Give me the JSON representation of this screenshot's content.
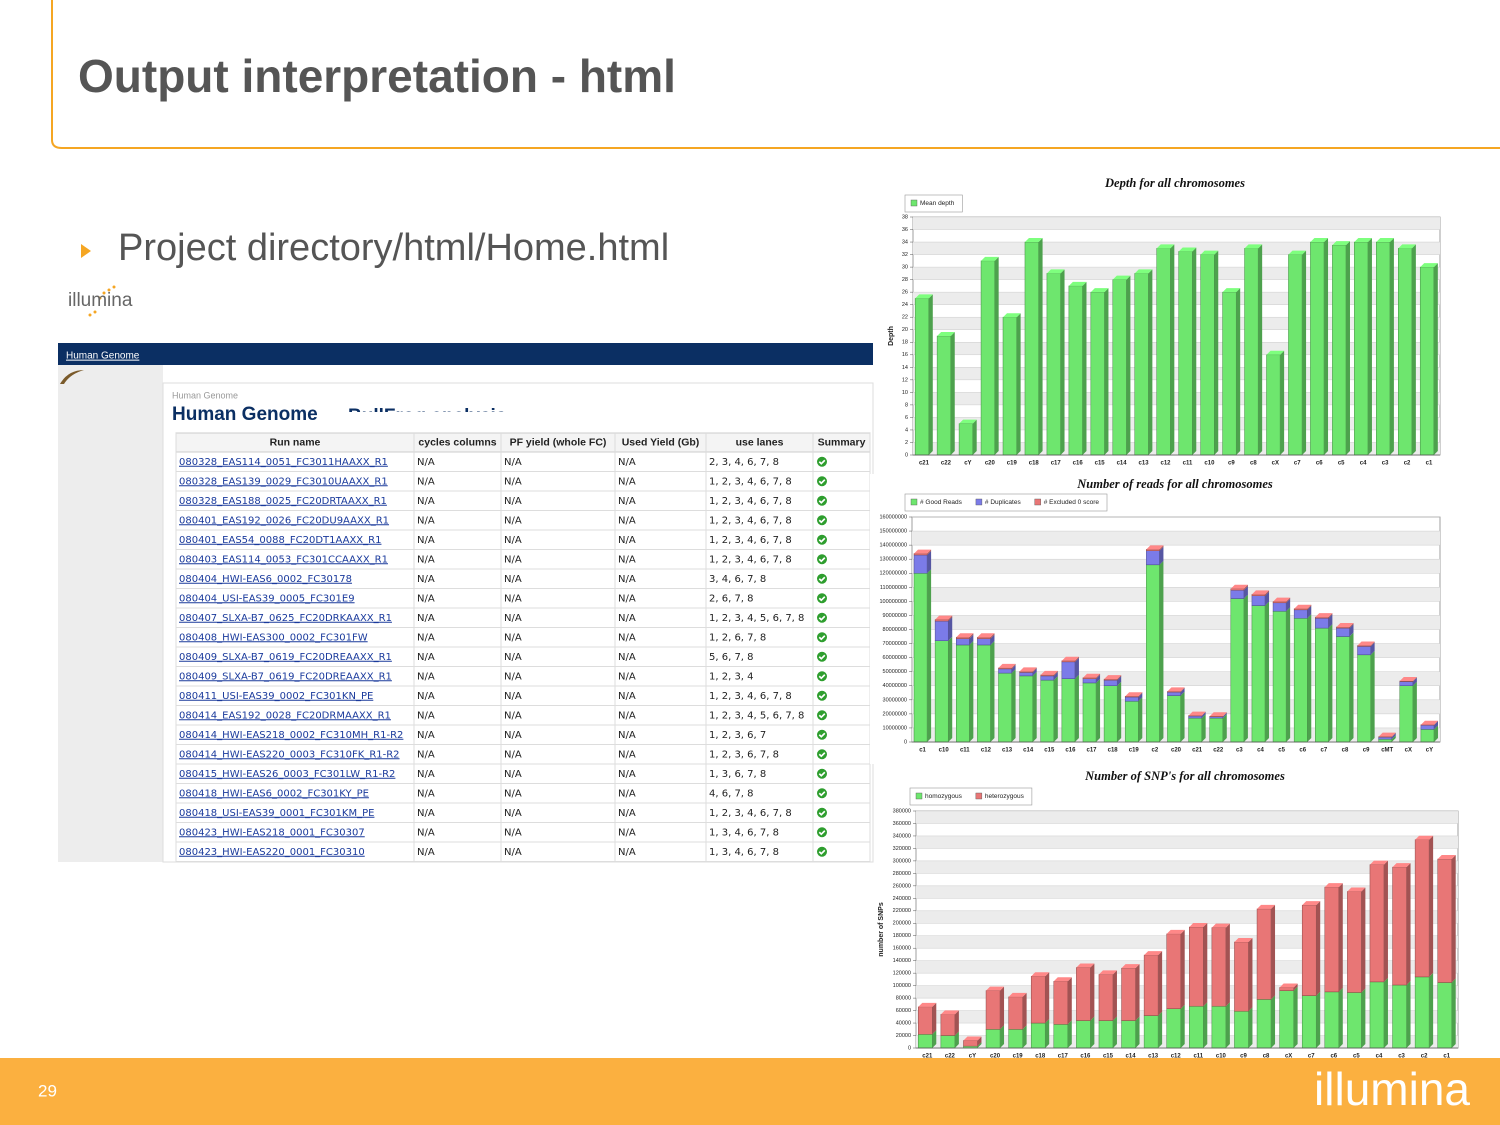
{
  "slide": {
    "title": "Output interpretation - html",
    "bullet": "Project directory/html/Home.html",
    "logo": "illumina",
    "page_number": "29"
  },
  "browser": {
    "nav_link": "Human Genome",
    "breadcrumb": "Human Genome",
    "heading": "Human Genome",
    "subheading": "BullFrog analysis"
  },
  "table": {
    "header": [
      "Run name",
      "cycles columns",
      "PF yield (whole FC)",
      "Used Yield (Gb)",
      "use lanes",
      "Summary"
    ],
    "rows": [
      [
        "080328_EAS114_0051_FC3011HAAXX_R1",
        "N/A",
        "N/A",
        "N/A",
        "2, 3, 4, 6, 7, 8"
      ],
      [
        "080328_EAS139_0029_FC3010UAAXX_R1",
        "N/A",
        "N/A",
        "N/A",
        "1, 2, 3, 4, 6, 7, 8"
      ],
      [
        "080328_EAS188_0025_FC20DRTAAXX_R1",
        "N/A",
        "N/A",
        "N/A",
        "1, 2, 3, 4, 6, 7, 8"
      ],
      [
        "080401_EAS192_0026_FC20DU9AAXX_R1",
        "N/A",
        "N/A",
        "N/A",
        "1, 2, 3, 4, 6, 7, 8"
      ],
      [
        "080401_EAS54_0088_FC20DT1AAXX_R1",
        "N/A",
        "N/A",
        "N/A",
        "1, 2, 3, 4, 6, 7, 8"
      ],
      [
        "080403_EAS114_0053_FC301CCAAXX_R1",
        "N/A",
        "N/A",
        "N/A",
        "1, 2, 3, 4, 6, 7, 8"
      ],
      [
        "080404_HWI-EAS6_0002_FC30178",
        "N/A",
        "N/A",
        "N/A",
        "3, 4, 6, 7, 8"
      ],
      [
        "080404_USI-EAS39_0005_FC301E9",
        "N/A",
        "N/A",
        "N/A",
        "2, 6, 7, 8"
      ],
      [
        "080407_SLXA-B7_0625_FC20DRKAAXX_R1",
        "N/A",
        "N/A",
        "N/A",
        "1, 2, 3, 4, 5, 6, 7, 8"
      ],
      [
        "080408_HWI-EAS300_0002_FC301FW",
        "N/A",
        "N/A",
        "N/A",
        "1, 2, 6, 7, 8"
      ],
      [
        "080409_SLXA-B7_0619_FC20DREAAXX_R1",
        "N/A",
        "N/A",
        "N/A",
        "5, 6, 7, 8"
      ],
      [
        "080409_SLXA-B7_0619_FC20DREAAXX_R1",
        "N/A",
        "N/A",
        "N/A",
        "1, 2, 3, 4"
      ],
      [
        "080411_USI-EAS39_0002_FC301KN_PE",
        "N/A",
        "N/A",
        "N/A",
        "1, 2, 3, 4, 6, 7, 8"
      ],
      [
        "080414_EAS192_0028_FC20DRMAAXX_R1",
        "N/A",
        "N/A",
        "N/A",
        "1, 2, 3, 4, 5, 6, 7, 8"
      ],
      [
        "080414_HWI-EAS218_0002_FC310MH_R1-R2",
        "N/A",
        "N/A",
        "N/A",
        "1, 2, 3, 6, 7"
      ],
      [
        "080414_HWI-EAS220_0003_FC310FK_R1-R2",
        "N/A",
        "N/A",
        "N/A",
        "1, 2, 3, 6, 7, 8"
      ],
      [
        "080415_HWI-EAS26_0003_FC301LW_R1-R2",
        "N/A",
        "N/A",
        "N/A",
        "1, 3, 6, 7, 8"
      ],
      [
        "080418_HWI-EAS6_0002_FC301KY_PE",
        "N/A",
        "N/A",
        "N/A",
        "4, 6, 7, 8"
      ],
      [
        "080418_USI-EAS39_0001_FC301KM_PE",
        "N/A",
        "N/A",
        "N/A",
        "1, 2, 3, 4, 6, 7, 8"
      ],
      [
        "080423_HWI-EAS218_0001_FC30307",
        "N/A",
        "N/A",
        "N/A",
        "1, 3, 4, 6, 7, 8"
      ],
      [
        "080423_HWI-EAS220_0001_FC30310",
        "N/A",
        "N/A",
        "N/A",
        "1, 3, 4, 6, 7, 8"
      ]
    ]
  },
  "chart_data": [
    {
      "type": "bar",
      "title": "Depth for all chromosomes",
      "ylabel": "Depth",
      "categories": [
        "c21",
        "c22",
        "cY",
        "c20",
        "c19",
        "c18",
        "c17",
        "c16",
        "c15",
        "c14",
        "c13",
        "c12",
        "c11",
        "c10",
        "c9",
        "c8",
        "cX",
        "c7",
        "c6",
        "c5",
        "c4",
        "c3",
        "c2",
        "c1"
      ],
      "series": [
        {
          "name": "Mean depth",
          "color": "#6ee66e",
          "values": [
            25,
            19,
            5,
            31,
            22,
            34,
            29,
            27,
            26,
            28,
            29,
            33,
            32.5,
            32,
            26,
            33,
            16,
            32,
            34,
            33.5,
            34,
            34,
            33,
            30
          ]
        }
      ],
      "ylim": [
        0,
        38
      ],
      "yticks": [
        0,
        2,
        4,
        6,
        8,
        10,
        12,
        14,
        16,
        18,
        20,
        22,
        24,
        26,
        28,
        30,
        32,
        34,
        36,
        38
      ],
      "grid": true
    },
    {
      "type": "bar",
      "title": "Number of reads for all chromosomes",
      "stacked": true,
      "categories": [
        "c1",
        "c10",
        "c11",
        "c12",
        "c13",
        "c14",
        "c15",
        "c16",
        "c17",
        "c18",
        "c19",
        "c2",
        "c20",
        "c21",
        "c22",
        "c3",
        "c4",
        "c5",
        "c6",
        "c7",
        "c8",
        "c9",
        "cMT",
        "cX",
        "cY"
      ],
      "series": [
        {
          "name": "# Good Reads",
          "color": "#6ee66e",
          "values": [
            120000000,
            72000000,
            69000000,
            69000000,
            49000000,
            47000000,
            44000000,
            45000000,
            42000000,
            40000000,
            29000000,
            126000000,
            33000000,
            17000000,
            17000000,
            102000000,
            97000000,
            93000000,
            88000000,
            81000000,
            75000000,
            62000000,
            2000000,
            40000000,
            9000000
          ]
        },
        {
          "name": "# Duplicates",
          "color": "#7b7be8",
          "values": [
            13000000,
            14000000,
            4500000,
            4500000,
            3000000,
            2500000,
            3000000,
            12000000,
            3000000,
            4000000,
            3000000,
            10000000,
            2500000,
            1500000,
            1000000,
            6000000,
            7000000,
            6000000,
            6000000,
            7000000,
            6000000,
            6000000,
            1500000,
            3000000,
            3000000
          ]
        },
        {
          "name": "# Excluded 0 score",
          "color": "#e87676",
          "values": [
            1000000,
            1000000,
            1000000,
            1000000,
            700000,
            700000,
            700000,
            800000,
            700000,
            700000,
            500000,
            1000000,
            500000,
            300000,
            300000,
            1000000,
            1000000,
            800000,
            800000,
            800000,
            800000,
            600000,
            300000,
            400000,
            300000
          ]
        }
      ],
      "ylim": [
        0,
        160000000
      ],
      "yticks": [
        0,
        10000000,
        20000000,
        30000000,
        40000000,
        50000000,
        60000000,
        70000000,
        80000000,
        90000000,
        100000000,
        110000000,
        120000000,
        130000000,
        140000000,
        150000000,
        160000000
      ],
      "grid": true
    },
    {
      "type": "bar",
      "title": "Number of SNP's for all chromosomes",
      "ylabel": "number of SNPs",
      "stacked": true,
      "categories": [
        "c21",
        "c22",
        "cY",
        "c20",
        "c19",
        "c18",
        "c17",
        "c16",
        "c15",
        "c14",
        "c13",
        "c12",
        "c11",
        "c10",
        "c9",
        "c8",
        "cX",
        "c7",
        "c6",
        "c5",
        "c4",
        "c3",
        "c2",
        "c1"
      ],
      "series": [
        {
          "name": "homozygous",
          "color": "#6ee66e",
          "values": [
            22000,
            20000,
            3000,
            30000,
            30000,
            40000,
            38000,
            44000,
            44000,
            44000,
            52000,
            63000,
            67000,
            67000,
            59000,
            78000,
            92000,
            84000,
            90000,
            89000,
            106000,
            101000,
            114000,
            105000
          ]
        },
        {
          "name": "heterozygous",
          "color": "#e87676",
          "values": [
            44000,
            34000,
            9000,
            62000,
            52000,
            75000,
            69000,
            85000,
            74000,
            84000,
            97000,
            120000,
            127000,
            126000,
            111000,
            145000,
            5000,
            145000,
            168000,
            162000,
            188000,
            189000,
            220000,
            198000
          ]
        }
      ],
      "ylim": [
        0,
        380000
      ],
      "yticks": [
        0,
        20000,
        40000,
        60000,
        80000,
        100000,
        120000,
        140000,
        160000,
        180000,
        200000,
        220000,
        240000,
        260000,
        280000,
        300000,
        320000,
        340000,
        360000,
        380000
      ],
      "grid": true
    }
  ]
}
